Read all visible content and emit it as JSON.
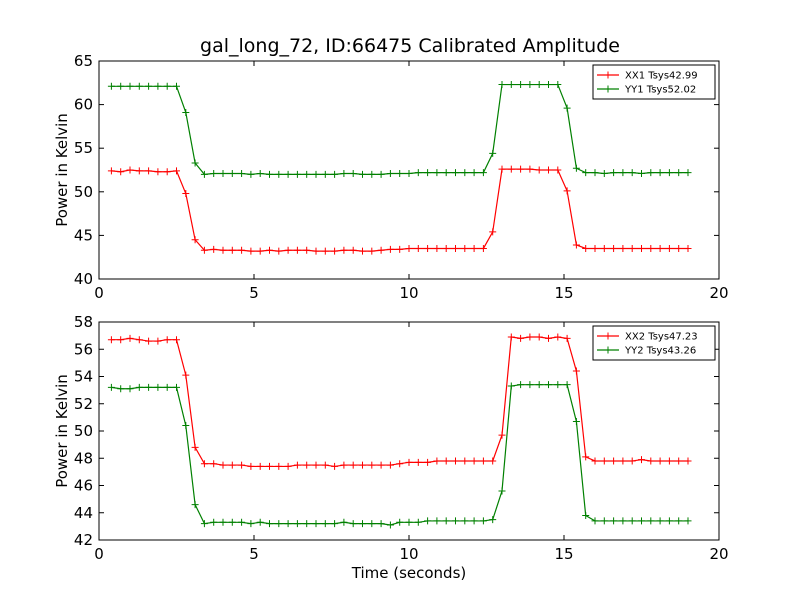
{
  "title": "gal_long_72, ID:66475 Calibrated Amplitude",
  "chart_data": [
    {
      "type": "line",
      "ylabel": "Power in Kelvin",
      "xlabel": "",
      "xlim": [
        0,
        20
      ],
      "ylim": [
        40,
        65
      ],
      "xticks": [
        0,
        5,
        10,
        15,
        20
      ],
      "yticks": [
        40,
        45,
        50,
        55,
        60,
        65
      ],
      "legend_position": "top-right",
      "grid": false,
      "x": [
        0.4,
        0.7,
        1.0,
        1.3,
        1.6,
        1.9,
        2.2,
        2.5,
        2.8,
        3.1,
        3.4,
        3.7,
        4.0,
        4.3,
        4.6,
        4.9,
        5.2,
        5.5,
        5.8,
        6.1,
        6.4,
        6.7,
        7.0,
        7.3,
        7.6,
        7.9,
        8.2,
        8.5,
        8.8,
        9.1,
        9.4,
        9.7,
        10.0,
        10.3,
        10.6,
        10.9,
        11.2,
        11.5,
        11.8,
        12.1,
        12.4,
        12.7,
        13.0,
        13.3,
        13.6,
        13.9,
        14.2,
        14.5,
        14.8,
        15.1,
        15.4,
        15.7,
        16.0,
        16.3,
        16.6,
        16.9,
        17.2,
        17.5,
        17.8,
        18.1,
        18.4,
        18.7,
        19.0
      ],
      "series": [
        {
          "name": "XX1 Tsys42.99",
          "color": "#ff0000",
          "values": [
            52.4,
            52.3,
            52.5,
            52.4,
            52.4,
            52.3,
            52.3,
            52.4,
            49.8,
            44.5,
            43.3,
            43.4,
            43.3,
            43.3,
            43.3,
            43.2,
            43.2,
            43.3,
            43.2,
            43.3,
            43.3,
            43.3,
            43.2,
            43.2,
            43.2,
            43.3,
            43.3,
            43.2,
            43.2,
            43.3,
            43.4,
            43.4,
            43.5,
            43.5,
            43.5,
            43.5,
            43.5,
            43.5,
            43.5,
            43.5,
            43.5,
            45.4,
            52.6,
            52.6,
            52.6,
            52.6,
            52.5,
            52.5,
            52.5,
            50.1,
            43.9,
            43.5,
            43.5,
            43.5,
            43.5,
            43.5,
            43.5,
            43.5,
            43.5,
            43.5,
            43.5,
            43.5,
            43.5
          ]
        },
        {
          "name": "YY1 Tsys52.02",
          "color": "#008000",
          "values": [
            62.1,
            62.1,
            62.1,
            62.1,
            62.1,
            62.1,
            62.1,
            62.1,
            59.1,
            53.3,
            52.0,
            52.1,
            52.1,
            52.1,
            52.1,
            52.0,
            52.1,
            52.0,
            52.0,
            52.0,
            52.0,
            52.0,
            52.0,
            52.0,
            52.0,
            52.1,
            52.1,
            52.0,
            52.0,
            52.0,
            52.1,
            52.1,
            52.1,
            52.2,
            52.2,
            52.2,
            52.2,
            52.2,
            52.2,
            52.2,
            52.2,
            54.4,
            62.3,
            62.3,
            62.3,
            62.3,
            62.3,
            62.3,
            62.3,
            59.6,
            52.7,
            52.2,
            52.2,
            52.1,
            52.2,
            52.2,
            52.2,
            52.1,
            52.2,
            52.2,
            52.2,
            52.2,
            52.2
          ]
        }
      ]
    },
    {
      "type": "line",
      "ylabel": "Power in Kelvin",
      "xlabel": "Time (seconds)",
      "xlim": [
        0,
        20
      ],
      "ylim": [
        42,
        58
      ],
      "xticks": [
        0,
        5,
        10,
        15,
        20
      ],
      "yticks": [
        42,
        44,
        46,
        48,
        50,
        52,
        54,
        56,
        58
      ],
      "legend_position": "top-right",
      "grid": false,
      "x": [
        0.4,
        0.7,
        1.0,
        1.3,
        1.6,
        1.9,
        2.2,
        2.5,
        2.8,
        3.1,
        3.4,
        3.7,
        4.0,
        4.3,
        4.6,
        4.9,
        5.2,
        5.5,
        5.8,
        6.1,
        6.4,
        6.7,
        7.0,
        7.3,
        7.6,
        7.9,
        8.2,
        8.5,
        8.8,
        9.1,
        9.4,
        9.7,
        10.0,
        10.3,
        10.6,
        10.9,
        11.2,
        11.5,
        11.8,
        12.1,
        12.4,
        12.7,
        13.0,
        13.3,
        13.6,
        13.9,
        14.2,
        14.5,
        14.8,
        15.1,
        15.4,
        15.7,
        16.0,
        16.3,
        16.6,
        16.9,
        17.2,
        17.5,
        17.8,
        18.1,
        18.4,
        18.7,
        19.0
      ],
      "series": [
        {
          "name": "XX2 Tsys47.23",
          "color": "#ff0000",
          "values": [
            56.7,
            56.7,
            56.8,
            56.7,
            56.6,
            56.6,
            56.7,
            56.7,
            54.1,
            48.8,
            47.6,
            47.6,
            47.5,
            47.5,
            47.5,
            47.4,
            47.4,
            47.4,
            47.4,
            47.4,
            47.5,
            47.5,
            47.5,
            47.5,
            47.4,
            47.5,
            47.5,
            47.5,
            47.5,
            47.5,
            47.5,
            47.6,
            47.7,
            47.7,
            47.7,
            47.8,
            47.8,
            47.8,
            47.8,
            47.8,
            47.8,
            47.8,
            49.7,
            56.9,
            56.8,
            56.9,
            56.9,
            56.8,
            56.9,
            56.8,
            54.4,
            48.1,
            47.8,
            47.8,
            47.8,
            47.8,
            47.8,
            47.9,
            47.8,
            47.8,
            47.8,
            47.8,
            47.8
          ]
        },
        {
          "name": "YY2 Tsys43.26",
          "color": "#008000",
          "values": [
            53.2,
            53.1,
            53.1,
            53.2,
            53.2,
            53.2,
            53.2,
            53.2,
            50.4,
            44.6,
            43.2,
            43.3,
            43.3,
            43.3,
            43.3,
            43.2,
            43.3,
            43.2,
            43.2,
            43.2,
            43.2,
            43.2,
            43.2,
            43.2,
            43.2,
            43.3,
            43.2,
            43.2,
            43.2,
            43.2,
            43.1,
            43.3,
            43.3,
            43.3,
            43.4,
            43.4,
            43.4,
            43.4,
            43.4,
            43.4,
            43.4,
            43.5,
            45.6,
            53.3,
            53.4,
            53.4,
            53.4,
            53.4,
            53.4,
            53.4,
            50.7,
            43.8,
            43.4,
            43.4,
            43.4,
            43.4,
            43.4,
            43.4,
            43.4,
            43.4,
            43.4,
            43.4,
            43.4
          ]
        }
      ]
    }
  ]
}
